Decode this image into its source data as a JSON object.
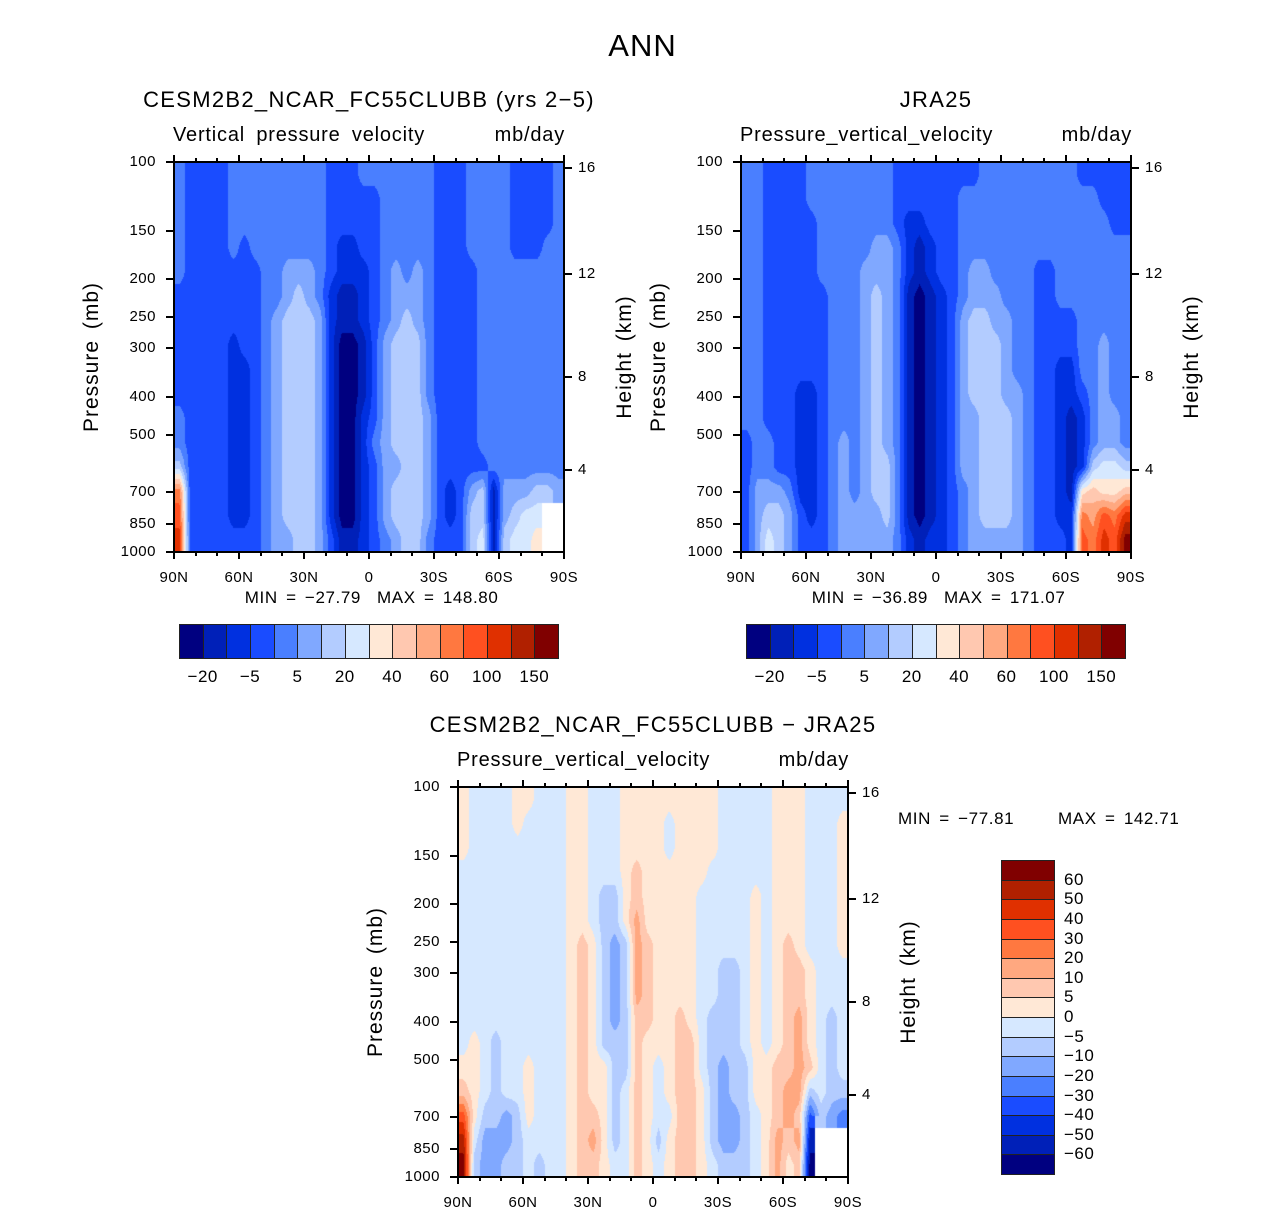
{
  "figure_title": "ANN",
  "colors": [
    "#000080",
    "#0020b8",
    "#0030e0",
    "#1a4cff",
    "#4a7fff",
    "#80a8ff",
    "#b3ccff",
    "#d6e8ff",
    "#ffe8d6",
    "#ffc8b0",
    "#ffa880",
    "#ff7840",
    "#ff5020",
    "#e03000",
    "#b02000",
    "#800000"
  ],
  "chart_data": [
    {
      "type": "heatmap",
      "title": "CESM2B2_NCAR_FC55CLUBB (yrs 2−5)",
      "variable": "Vertical pressure velocity",
      "units": "mb/day",
      "ylabel": "Pressure (mb)",
      "ylabel_right": "Height (km)",
      "x_ticks": [
        "90N",
        "60N",
        "30N",
        "0",
        "30S",
        "60S",
        "90S"
      ],
      "y_ticks": [
        "100",
        "150",
        "200",
        "250",
        "300",
        "400",
        "500",
        "700",
        "850",
        "1000"
      ],
      "y_right_ticks": [
        "4",
        "8",
        "12",
        "16"
      ],
      "xlim": [
        90,
        -90
      ],
      "ylim": [
        1000,
        100
      ],
      "min_label": "MIN = −27.79",
      "max_label": "MAX = 148.80",
      "colorbar_labels": [
        "−20",
        "−5",
        "5",
        "20",
        "40",
        "60",
        "100",
        "150"
      ],
      "grid_note": "rows top(100mb)->bottom(1000mb), 36 cols 90N->90S, hex = color level index, . = missing",
      "grid": [
        "4 3333 444 44 444 4 3 33 4 4 4 444 4 3 33 44 44 3333 4",
        "4 3333 444 44 444 4 3 33 3 3 4 444 4 3 33 44 44 3333 4",
        "4 3333 444 44 444 4 3 33 3 3 4 444 4 3 33 44 44 3333 4",
        "4 3333 434 44 444 4 3 22 3 3 4 444 4 3 33 44 44 3334 4",
        "4 3333 333 44 555 4 3 22 2 3 4 545 4 3 33 34 44 4444 4",
        "3 3333 333 44 565 4 2 11 2 3 4 555 4 3 33 34 44 4444 4",
        "3 3333 333 45 666 5 2 11 2 3 4 565 4 3 33 34 44 4444 4",
        "3 3333 233 45 666 5 2 00 1 3 5 666 4 3 33 34 44 4444 4",
        "3 3333 223 45 666 5 2 00 1 3 5 666 4 3 33 34 44 4444 4",
        "3 3333 223 45 666 5 2 00 1 3 5 666 4 3 33 34 44 4444 4",
        "4 3333 223 45 666 5 2 00 2 3 5 666 5 3 33 34 44 4444 4",
        "4 3333 223 45 666 5 2 00 2 4 5 666 5 3 33 34 44 4444 4",
        "6 3333 223 45 666 5 2 00 2 3 5 566 5 3 33 33 44 4444 4",
        "b 3333 223 45 666 5 2 00 2 3 5 666 5 3 23 56 15 5566 5",
        "c 3333 223 45 666 5 2 00 2 3 5 666 5 3 23 66 15 677. .",
        "d 3333 333 45 566 5 3 11 2 3 4 566 4 3 33 67 16 778. ."
      ]
    },
    {
      "type": "heatmap",
      "title": "JRA25",
      "variable": "Pressure_vertical_velocity",
      "units": "mb/day",
      "ylabel": "Pressure (mb)",
      "ylabel_right": "Height (km)",
      "x_ticks": [
        "90N",
        "60N",
        "30N",
        "0",
        "30S",
        "60S",
        "90S"
      ],
      "y_ticks": [
        "100",
        "150",
        "200",
        "250",
        "300",
        "400",
        "500",
        "700",
        "850",
        "1000"
      ],
      "y_right_ticks": [
        "4",
        "8",
        "12",
        "16"
      ],
      "xlim": [
        90,
        -90
      ],
      "ylim": [
        1000,
        100
      ],
      "min_label": "MIN = −36.89",
      "max_label": "MAX = 171.07",
      "colorbar_labels": [
        "−20",
        "−5",
        "5",
        "20",
        "40",
        "60",
        "100",
        "150"
      ],
      "grid": [
        "4 4 3 3 3 3 4 4 4 4 4 4 4 4 3 3 3 3 3 3 3 3 4 4 4 4 4 4 4 4 4 3 3 3 3 3",
        "4 4 3 3 3 3 4 4 4 4 4 4 4 4 3 3 3 3 3 3 4 4 4 4 4 4 4 4 4 4 4 4 4 3 3 3",
        "4 4 3 3 3 3 3 4 4 4 4 4 4 4 3 2 2 3 3 3 4 4 4 4 4 4 4 4 4 4 4 4 4 4 3 3",
        "4 4 3 3 3 3 3 4 4 4 4 4 5 5 4 2 1 2 3 3 4 4 4 4 4 4 4 4 4 4 4 4 4 4 4 4",
        "4 4 3 3 3 3 3 4 4 4 4 5 5 5 4 2 1 2 3 3 4 5 5 4 4 4 4 3 3 4 4 4 4 4 4 4",
        "4 4 3 3 3 3 3 3 4 4 4 5 6 5 4 1 0 1 2 3 4 5 5 5 4 4 4 3 3 4 4 4 4 4 4 4",
        "4 4 3 3 3 3 3 3 4 4 4 5 6 5 4 1 0 1 2 3 5 6 6 5 5 4 4 3 3 3 3 4 4 4 4 4",
        "4 4 3 3 3 3 3 3 4 4 4 5 6 5 4 1 0 1 2 3 5 6 6 6 5 4 4 3 3 3 3 4 4 5 4 4",
        "4 4 3 3 3 3 3 3 4 4 4 5 6 5 4 1 0 1 2 3 5 6 6 6 5 4 4 3 3 2 2 4 4 5 4 4",
        "4 4 3 3 3 2 2 3 4 4 4 5 6 5 4 1 0 1 2 3 5 6 6 6 5 5 4 3 3 2 2 3 4 5 4 4",
        "4 4 3 3 3 2 2 3 4 4 4 5 6 5 4 1 0 1 2 3 5 5 6 6 6 5 4 3 3 2 1 2 4 5 5 4",
        "3 4 4 3 3 2 2 3 4 5 4 5 6 5 4 1 0 1 2 3 5 5 6 6 6 5 4 3 3 2 1 2 4 5 5 4",
        "3 4 4 3 3 2 2 3 4 5 4 5 6 6 4 1 0 1 2 3 5 5 6 6 6 5 4 3 3 2 1 2 6 7 7 6",
        "3 5 5 5 4 2 2 3 4 5 4 5 6 6 4 1 0 1 2 3 4 5 6 6 6 5 4 3 3 2 1 8 9 8 8 9",
        "3 5 6 6 5 3 2 3 4 5 5 5 5 6 4 1 0 1 2 3 4 5 6 6 6 5 4 3 3 2 2 b a c b d",
        "3 5 7 6 5 3 3 3 4 5 5 5 5 5 4 2 1 2 2 3 4 5 5 5 5 5 4 3 3 3 2 c b d c f"
      ]
    },
    {
      "type": "heatmap",
      "title": "CESM2B2_NCAR_FC55CLUBB − JRA25",
      "variable": "Pressure_vertical_velocity",
      "units": "mb/day",
      "ylabel": "Pressure (mb)",
      "ylabel_right": "Height (km)",
      "x_ticks": [
        "90N",
        "60N",
        "30N",
        "0",
        "30S",
        "60S",
        "90S"
      ],
      "y_ticks": [
        "100",
        "150",
        "200",
        "250",
        "300",
        "400",
        "500",
        "700",
        "850",
        "1000"
      ],
      "y_right_ticks": [
        "4",
        "8",
        "12",
        "16"
      ],
      "xlim": [
        90,
        -90
      ],
      "ylim": [
        1000,
        100
      ],
      "min_label": "MIN = −77.81",
      "max_label": "MAX = 142.71",
      "colorbar_labels": [
        "60",
        "50",
        "40",
        "30",
        "20",
        "10",
        "5",
        "0",
        "−5",
        "−10",
        "−20",
        "−30",
        "−40",
        "−50",
        "−60"
      ],
      "grid": [
        "8 7 7 7 7 8 8 7 7 7 8 8 7 7 7 8 8 8 8 8 8 8 8 8 7 7 7 7 7 8 8 8 7 7 7 7",
        "8 7 7 7 7 8 7 7 7 7 8 8 7 7 7 8 8 8 8 7 8 8 8 8 7 7 7 7 7 8 8 8 7 7 7 8",
        "8 7 7 7 7 7 7 7 7 7 8 8 7 7 7 8 8 8 8 7 8 8 8 8 7 7 7 7 7 8 8 8 7 7 7 8",
        "7 7 7 7 7 7 7 7 7 7 8 8 7 7 7 8 9 8 8 8 8 8 8 7 7 7 7 7 7 8 8 8 7 7 7 8",
        "7 7 7 7 7 7 7 7 7 7 8 8 7 6 6 8 9 8 8 8 8 8 7 7 7 7 7 8 7 8 8 8 7 7 7 8",
        "7 7 7 7 7 7 7 7 7 7 8 8 7 6 6 8 a 8 8 8 8 8 7 7 7 7 7 8 7 8 8 8 7 7 7 8",
        "7 7 7 7 7 7 7 7 7 7 8 9 8 6 5 6 a 9 8 8 8 8 7 7 7 7 7 8 7 8 9 8 7 7 7 8",
        "7 7 7 7 7 7 7 7 7 7 8 9 8 6 5 6 a 9 8 8 8 8 7 7 6 6 7 8 7 8 9 9 8 7 7 7",
        "7 7 7 7 7 7 7 7 7 7 8 9 8 6 5 6 a 9 8 8 8 8 7 7 6 6 7 8 7 8 9 9 8 7 7 7",
        "7 7 7 7 7 7 7 7 7 7 8 9 8 6 5 6 9 9 8 8 9 8 7 6 6 6 7 8 7 8 9 a 8 7 6 7",
        "7 8 7 6 7 7 7 7 7 7 8 9 8 6 6 6 9 8 8 8 9 9 7 6 6 6 7 8 7 8 9 a 8 7 6 7",
        "8 8 7 6 7 7 8 7 7 7 8 9 8 8 6 6 9 8 7 8 9 9 7 6 5 6 6 8 8 9 9 a 9 7 6 7",
        "9 8 7 6 7 7 8 7 7 7 8 9 8 8 6 7 9 8 7 8 9 9 8 6 5 6 6 8 8 9 a a 6 7 6 6",
        "c 8 6 6 5 6 8 7 7 7 8 9 9 8 6 7 9 8 7 7 9 9 8 6 5 5 6 7 8 9 a 9 3 6 5 4",
        "e 7 5 5 5 6 7 7 7 7 8 9 a 8 6 7 9 8 6 8 9 9 8 6 5 5 6 7 8 a 9 a 1 . . .",
        "f 6 5 5 6 6 7 6 7 7 8 9 9 8 7 7 9 8 7 8 9 9 8 7 6 6 6 7 8 a 8 9 0 . . ."
      ]
    }
  ]
}
